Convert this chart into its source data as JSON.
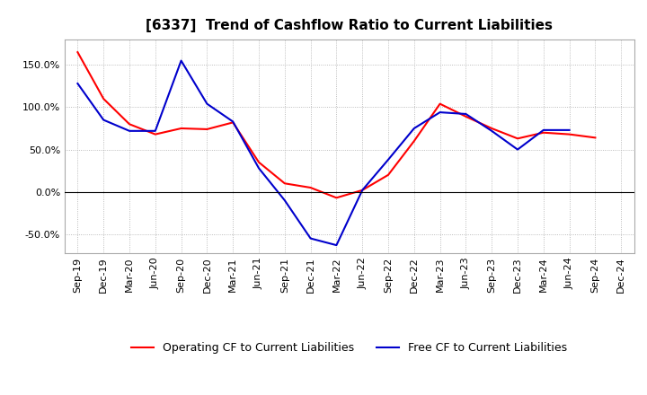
{
  "title": "[6337]  Trend of Cashflow Ratio to Current Liabilities",
  "x_labels": [
    "Sep-19",
    "Dec-19",
    "Mar-20",
    "Jun-20",
    "Sep-20",
    "Dec-20",
    "Mar-21",
    "Jun-21",
    "Sep-21",
    "Dec-21",
    "Mar-22",
    "Jun-22",
    "Sep-22",
    "Dec-22",
    "Mar-23",
    "Jun-23",
    "Sep-23",
    "Dec-23",
    "Mar-24",
    "Jun-24",
    "Sep-24",
    "Dec-24"
  ],
  "operating_cf": [
    1.65,
    1.1,
    0.8,
    0.68,
    0.75,
    0.74,
    0.82,
    0.35,
    0.1,
    0.05,
    -0.07,
    0.02,
    0.2,
    0.6,
    1.04,
    0.89,
    0.75,
    0.63,
    0.7,
    0.68,
    0.64,
    null
  ],
  "free_cf": [
    1.28,
    0.85,
    0.72,
    0.72,
    1.55,
    1.04,
    0.83,
    0.28,
    -0.1,
    -0.55,
    -0.63,
    0.02,
    0.38,
    0.75,
    0.94,
    0.92,
    0.72,
    0.5,
    0.73,
    0.73,
    null,
    null
  ],
  "ylim": [
    -0.72,
    1.8
  ],
  "yticks": [
    -0.5,
    0.0,
    0.5,
    1.0,
    1.5
  ],
  "ytick_labels": [
    "-50.0%",
    "0.0%",
    "50.0%",
    "100.0%",
    "150.0%"
  ],
  "operating_color": "#FF0000",
  "free_color": "#0000CC",
  "legend_operating": "Operating CF to Current Liabilities",
  "legend_free": "Free CF to Current Liabilities",
  "bg_color": "#FFFFFF",
  "plot_bg_color": "#FFFFFF",
  "title_fontsize": 11,
  "tick_fontsize": 8,
  "legend_fontsize": 9
}
